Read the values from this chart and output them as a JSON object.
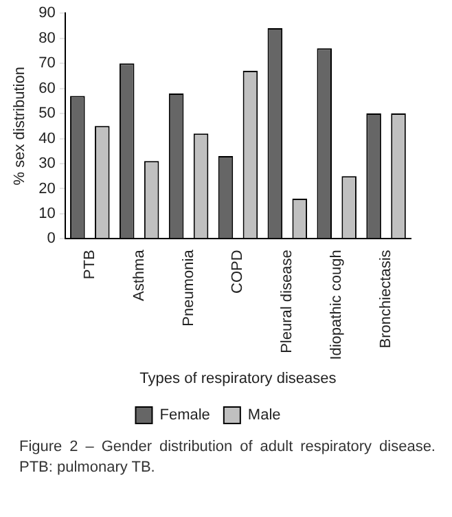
{
  "chart_data": {
    "type": "bar",
    "xlabel": "Types of respiratory diseases",
    "ylabel": "% sex distribution",
    "categories": [
      "PTB",
      "Asthma",
      "Pneumonia",
      "COPD",
      "Pleural disease",
      "Idiopathic cough",
      "Bronchiectasis"
    ],
    "series": [
      {
        "name": "Female",
        "color": "#666666",
        "values": [
          57,
          70,
          58,
          33,
          84,
          76,
          50
        ]
      },
      {
        "name": "Male",
        "color": "#c0c0c0",
        "values": [
          45,
          31,
          42,
          67,
          16,
          25,
          50
        ]
      }
    ],
    "ylim": [
      0,
      90
    ],
    "yticks": [
      0,
      10,
      20,
      30,
      40,
      50,
      60,
      70,
      80,
      90
    ],
    "grid": false,
    "legend": "bottom",
    "annotations": [
      "Figure 2 – Gender distribution of adult respiratory disease. PTB: pulmonary TB."
    ]
  }
}
